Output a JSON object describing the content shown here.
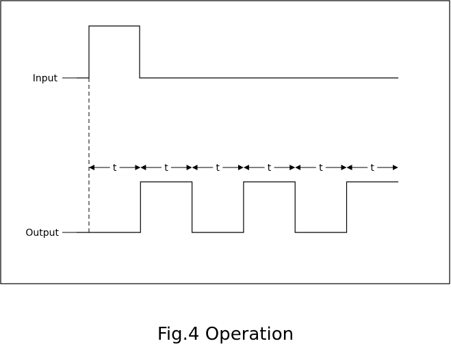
{
  "labels": {
    "input": "Input",
    "output": "Output"
  },
  "interval_label": "t",
  "interval_count": 6,
  "output_pulses": [
    1,
    3,
    5
  ],
  "caption": "Fig.4 Operation"
}
